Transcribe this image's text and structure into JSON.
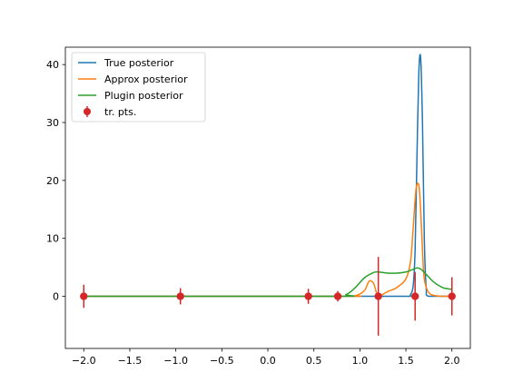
{
  "chart_data": {
    "type": "line",
    "title": "",
    "xlabel": "",
    "ylabel": "",
    "xlim": [
      -2.2,
      2.2
    ],
    "ylim": [
      -9,
      43
    ],
    "xticks": [
      -2.0,
      -1.5,
      -1.0,
      -0.5,
      0.0,
      0.5,
      1.0,
      1.5,
      2.0
    ],
    "xtick_labels": [
      "−2.0",
      "−1.5",
      "−1.0",
      "−0.5",
      "0.0",
      "0.5",
      "1.0",
      "1.5",
      "2.0"
    ],
    "yticks": [
      0,
      10,
      20,
      30,
      40
    ],
    "ytick_labels": [
      "0",
      "10",
      "20",
      "30",
      "40"
    ],
    "grid": false,
    "legend_position": "top-left",
    "series": [
      {
        "name": "True posterior",
        "color": "#1f77b4",
        "x": [
          -2.0,
          1.0,
          1.5,
          1.55,
          1.58,
          1.6,
          1.62,
          1.64,
          1.66,
          1.68,
          1.7,
          1.72,
          1.75,
          2.0
        ],
        "y": [
          0,
          0,
          0,
          0.3,
          2.0,
          8.0,
          24.0,
          38.5,
          41.2,
          30.0,
          10.0,
          1.5,
          0,
          0
        ]
      },
      {
        "name": "Approx posterior",
        "color": "#ff7f0e",
        "x": [
          -2.0,
          0.75,
          0.95,
          1.05,
          1.1,
          1.15,
          1.2,
          1.3,
          1.4,
          1.5,
          1.55,
          1.58,
          1.61,
          1.64,
          1.66,
          1.68,
          1.7,
          1.75,
          1.85,
          2.0
        ],
        "y": [
          0,
          0,
          0.1,
          1.0,
          2.6,
          2.2,
          0.0,
          0.8,
          1.5,
          3.0,
          6.0,
          12.0,
          18.5,
          19.2,
          15.0,
          8.0,
          3.0,
          0.6,
          0.05,
          0
        ]
      },
      {
        "name": "Plugin posterior",
        "color": "#2ca02c",
        "x": [
          -2.0,
          0.7,
          0.85,
          0.95,
          1.05,
          1.15,
          1.2,
          1.3,
          1.4,
          1.5,
          1.57,
          1.62,
          1.66,
          1.72,
          1.8,
          1.9,
          2.0
        ],
        "y": [
          0,
          0,
          0.3,
          1.5,
          3.2,
          4.1,
          4.2,
          4.0,
          4.0,
          4.2,
          4.6,
          4.9,
          4.7,
          3.8,
          2.5,
          1.5,
          1.2
        ]
      }
    ],
    "errorbar_series": {
      "name": "tr. pts.",
      "color": "#d62728",
      "points": [
        {
          "x": -2.0,
          "y": 0,
          "err": 2.0
        },
        {
          "x": -0.95,
          "y": 0,
          "err": 1.4
        },
        {
          "x": 0.44,
          "y": 0,
          "err": 1.3
        },
        {
          "x": 0.76,
          "y": 0,
          "err": 0.9
        },
        {
          "x": 1.2,
          "y": 0,
          "err": 6.8
        },
        {
          "x": 1.6,
          "y": 0,
          "err": 4.2
        },
        {
          "x": 2.0,
          "y": 0,
          "err": 3.3
        }
      ]
    }
  }
}
